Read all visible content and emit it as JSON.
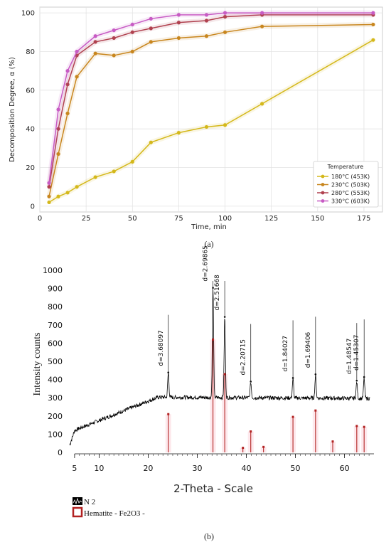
{
  "colors": {
    "c180": "#d4b81a",
    "c230": "#c8861e",
    "c280": "#b0414f",
    "c330": "#c75bc4",
    "xrd_line": "#000000",
    "hematite": "#b22222",
    "hematite_bg": "#fde8ec"
  },
  "chart_data": [
    {
      "type": "line",
      "panel_label": "(a)",
      "title": "",
      "xlabel": "Time, min",
      "ylabel": "Decomposition Degree, α (%)",
      "xlim": [
        0,
        185
      ],
      "ylim": [
        -3,
        103
      ],
      "xticks": [
        "0",
        "25",
        "50",
        "75",
        "100",
        "125",
        "150",
        "175"
      ],
      "yticks": [
        "0",
        "20",
        "40",
        "60",
        "80",
        "100"
      ],
      "grid": true,
      "legend": {
        "title": "Temperature",
        "placement": "lower-right"
      },
      "x": [
        5,
        10,
        15,
        20,
        30,
        40,
        50,
        60,
        75,
        90,
        100,
        120,
        180
      ],
      "series": [
        {
          "name": "180°C (453K)",
          "color": "#d4b81a",
          "values": [
            2,
            5,
            7,
            10,
            15,
            18,
            23,
            33,
            38,
            41,
            42,
            53,
            86
          ]
        },
        {
          "name": "230°C (503K)",
          "color": "#c8861e",
          "values": [
            5,
            27,
            48,
            67,
            79,
            78,
            80,
            85,
            87,
            88,
            90,
            93,
            94
          ]
        },
        {
          "name": "280°C (553K)",
          "color": "#b0414f",
          "values": [
            10,
            40,
            63,
            78,
            85,
            87,
            90,
            92,
            95,
            96,
            98,
            99,
            99
          ]
        },
        {
          "name": "330°C (603K)",
          "color": "#c75bc4",
          "values": [
            12,
            50,
            70,
            80,
            88,
            91,
            94,
            97,
            99,
            99,
            100,
            100,
            100
          ]
        }
      ]
    },
    {
      "type": "line",
      "panel_label": "(b)",
      "title": "",
      "xlabel": "2-Theta - Scale",
      "ylabel": "Intensity counts",
      "xlim": [
        4,
        66
      ],
      "ylim": [
        0,
        1000
      ],
      "xticks": [
        "5",
        "10",
        "20",
        "30",
        "40",
        "50",
        "60"
      ],
      "yticks": [
        "0",
        "100",
        "200",
        "300",
        "400",
        "500",
        "600",
        "700",
        "800",
        "900",
        "1000"
      ],
      "legend": {
        "placement": "bottom-left",
        "entries": [
          "N 2",
          "Hematite - Fe2O3 -"
        ]
      },
      "peaks": [
        {
          "two_theta": 24.1,
          "intensity": 435,
          "d_label": "d=3.68097"
        },
        {
          "two_theta": 33.2,
          "intensity": 900,
          "d_label": "d=2.69865"
        },
        {
          "two_theta": 35.6,
          "intensity": 740,
          "d_label": "d=2.51668"
        },
        {
          "two_theta": 40.9,
          "intensity": 385,
          "d_label": "d=2.20715"
        },
        {
          "two_theta": 49.5,
          "intensity": 405,
          "d_label": "d=1.84027"
        },
        {
          "two_theta": 54.1,
          "intensity": 425,
          "d_label": "d=1.69406"
        },
        {
          "two_theta": 62.5,
          "intensity": 390,
          "d_label": "d=1.48547"
        },
        {
          "two_theta": 64.0,
          "intensity": 410,
          "d_label": "d=1.45307"
        }
      ],
      "reference_hematite": {
        "two_theta": [
          24.1,
          33.2,
          35.6,
          39.3,
          40.9,
          43.5,
          49.5,
          54.1,
          57.6,
          62.5,
          64.0
        ],
        "intensity": [
          210,
          620,
          430,
          25,
          115,
          30,
          195,
          230,
          60,
          145,
          140
        ]
      }
    }
  ]
}
